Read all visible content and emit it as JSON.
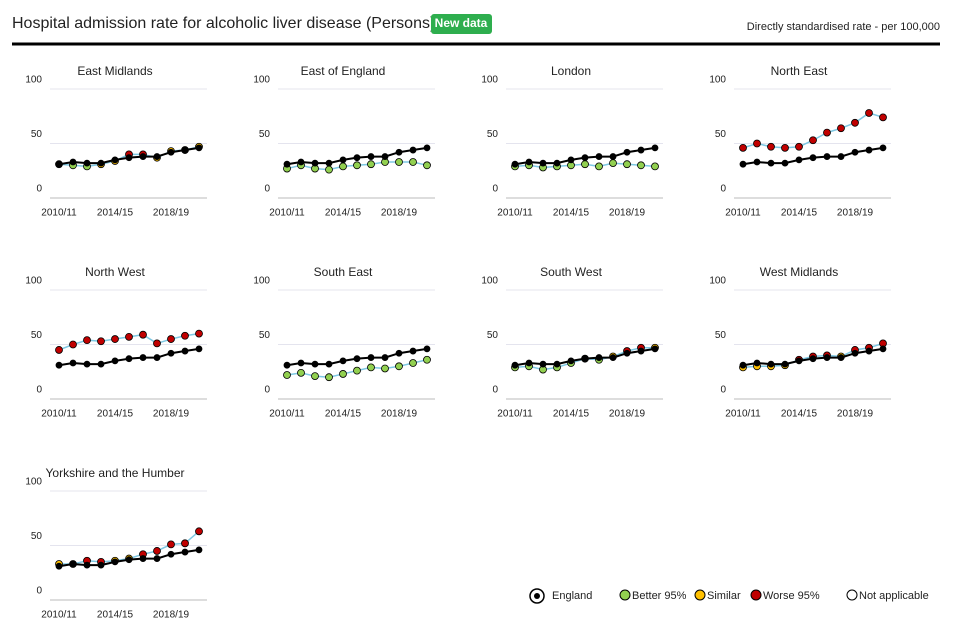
{
  "header": {
    "title": "Hospital admission rate for alcoholic liver disease (Persons)",
    "badge": "New data",
    "units": "Directly standardised rate - per 100,000"
  },
  "legend": {
    "items": [
      {
        "label": "England",
        "color": "#000000"
      },
      {
        "label": "Better 95%",
        "color": "#92d050"
      },
      {
        "label": "Similar",
        "color": "#ffc000"
      },
      {
        "label": "Worse 95%",
        "color": "#c00000"
      },
      {
        "label": "Not applicable",
        "color": "#ffffff"
      }
    ]
  },
  "chart_data": [
    {
      "type": "line",
      "title": "East Midlands",
      "categories": [
        "2010/11",
        null,
        null,
        null,
        "2014/15",
        null,
        null,
        null,
        "2018/19",
        null,
        null
      ],
      "ylim": [
        0,
        100
      ],
      "yticks": [
        0,
        50,
        100
      ],
      "grid": true,
      "series": [
        {
          "name": "England",
          "color": "#000000",
          "values": [
            31,
            33,
            32,
            32,
            35,
            37,
            38,
            38,
            42,
            44,
            46
          ]
        },
        {
          "color": "#7ec8e3",
          "values": [
            31,
            30,
            29,
            31,
            34,
            40,
            40,
            37,
            43,
            44,
            47
          ],
          "point_colors": [
            "#ffc000",
            "#92d050",
            "#92d050",
            "#ffc000",
            "#ffc000",
            "#c00000",
            "#c00000",
            "#ffc000",
            "#ffc000",
            "#ffc000",
            "#ffc000"
          ]
        }
      ]
    },
    {
      "type": "line",
      "title": "East of England",
      "categories": [
        "2010/11",
        null,
        null,
        null,
        "2014/15",
        null,
        null,
        null,
        "2018/19",
        null,
        null
      ],
      "ylim": [
        0,
        100
      ],
      "yticks": [
        0,
        50,
        100
      ],
      "grid": true,
      "series": [
        {
          "name": "England",
          "color": "#000000",
          "values": [
            31,
            33,
            32,
            32,
            35,
            37,
            38,
            38,
            42,
            44,
            46
          ]
        },
        {
          "color": "#7ec8e3",
          "values": [
            27,
            30,
            27,
            26,
            29,
            30,
            31,
            33,
            33,
            33,
            30
          ],
          "point_colors": [
            "#92d050",
            "#92d050",
            "#92d050",
            "#92d050",
            "#92d050",
            "#92d050",
            "#92d050",
            "#92d050",
            "#92d050",
            "#92d050",
            "#92d050"
          ]
        }
      ]
    },
    {
      "type": "line",
      "title": "London",
      "categories": [
        "2010/11",
        null,
        null,
        null,
        "2014/15",
        null,
        null,
        null,
        "2018/19",
        null,
        null
      ],
      "ylim": [
        0,
        100
      ],
      "yticks": [
        0,
        50,
        100
      ],
      "grid": true,
      "series": [
        {
          "name": "England",
          "color": "#000000",
          "values": [
            31,
            33,
            32,
            32,
            35,
            37,
            38,
            38,
            42,
            44,
            46
          ]
        },
        {
          "color": "#7ec8e3",
          "values": [
            29,
            30,
            28,
            29,
            30,
            31,
            29,
            32,
            31,
            30,
            29
          ],
          "point_colors": [
            "#92d050",
            "#92d050",
            "#92d050",
            "#92d050",
            "#92d050",
            "#92d050",
            "#92d050",
            "#92d050",
            "#92d050",
            "#92d050",
            "#92d050"
          ]
        }
      ]
    },
    {
      "type": "line",
      "title": "North East",
      "categories": [
        "2010/11",
        null,
        null,
        null,
        "2014/15",
        null,
        null,
        null,
        "2018/19",
        null,
        null
      ],
      "ylim": [
        0,
        100
      ],
      "yticks": [
        0,
        50,
        100
      ],
      "grid": true,
      "series": [
        {
          "name": "England",
          "color": "#000000",
          "values": [
            31,
            33,
            32,
            32,
            35,
            37,
            38,
            38,
            42,
            44,
            46
          ]
        },
        {
          "color": "#7ec8e3",
          "values": [
            46,
            50,
            47,
            46,
            47,
            53,
            60,
            64,
            69,
            78,
            74
          ],
          "point_colors": [
            "#c00000",
            "#c00000",
            "#c00000",
            "#c00000",
            "#c00000",
            "#c00000",
            "#c00000",
            "#c00000",
            "#c00000",
            "#c00000",
            "#c00000"
          ]
        }
      ]
    },
    {
      "type": "line",
      "title": "North West",
      "categories": [
        "2010/11",
        null,
        null,
        null,
        "2014/15",
        null,
        null,
        null,
        "2018/19",
        null,
        null
      ],
      "ylim": [
        0,
        100
      ],
      "yticks": [
        0,
        50,
        100
      ],
      "grid": true,
      "series": [
        {
          "name": "England",
          "color": "#000000",
          "values": [
            31,
            33,
            32,
            32,
            35,
            37,
            38,
            38,
            42,
            44,
            46
          ]
        },
        {
          "color": "#7ec8e3",
          "values": [
            45,
            50,
            54,
            53,
            55,
            57,
            59,
            51,
            55,
            58,
            60
          ],
          "point_colors": [
            "#c00000",
            "#c00000",
            "#c00000",
            "#c00000",
            "#c00000",
            "#c00000",
            "#c00000",
            "#c00000",
            "#c00000",
            "#c00000",
            "#c00000"
          ]
        }
      ]
    },
    {
      "type": "line",
      "title": "South East",
      "categories": [
        "2010/11",
        null,
        null,
        null,
        "2014/15",
        null,
        null,
        null,
        "2018/19",
        null,
        null
      ],
      "ylim": [
        0,
        100
      ],
      "yticks": [
        0,
        50,
        100
      ],
      "grid": true,
      "series": [
        {
          "name": "England",
          "color": "#000000",
          "values": [
            31,
            33,
            32,
            32,
            35,
            37,
            38,
            38,
            42,
            44,
            46
          ]
        },
        {
          "color": "#7ec8e3",
          "values": [
            22,
            24,
            21,
            20,
            23,
            26,
            29,
            28,
            30,
            33,
            36
          ],
          "point_colors": [
            "#92d050",
            "#92d050",
            "#92d050",
            "#92d050",
            "#92d050",
            "#92d050",
            "#92d050",
            "#92d050",
            "#92d050",
            "#92d050",
            "#92d050"
          ]
        }
      ]
    },
    {
      "type": "line",
      "title": "South West",
      "categories": [
        "2010/11",
        null,
        null,
        null,
        "2014/15",
        null,
        null,
        null,
        "2018/19",
        null,
        null
      ],
      "ylim": [
        0,
        100
      ],
      "yticks": [
        0,
        50,
        100
      ],
      "grid": true,
      "series": [
        {
          "name": "England",
          "color": "#000000",
          "values": [
            31,
            33,
            32,
            32,
            35,
            37,
            38,
            38,
            42,
            44,
            46
          ]
        },
        {
          "color": "#7ec8e3",
          "values": [
            29,
            30,
            27,
            29,
            33,
            37,
            36,
            39,
            44,
            47,
            47
          ],
          "point_colors": [
            "#92d050",
            "#92d050",
            "#92d050",
            "#92d050",
            "#92d050",
            "#92d050",
            "#92d050",
            "#ffc000",
            "#c00000",
            "#c00000",
            "#ffc000"
          ]
        }
      ]
    },
    {
      "type": "line",
      "title": "West Midlands",
      "categories": [
        "2010/11",
        null,
        null,
        null,
        "2014/15",
        null,
        null,
        null,
        "2018/19",
        null,
        null
      ],
      "ylim": [
        0,
        100
      ],
      "yticks": [
        0,
        50,
        100
      ],
      "grid": true,
      "series": [
        {
          "name": "England",
          "color": "#000000",
          "values": [
            31,
            33,
            32,
            32,
            35,
            37,
            38,
            38,
            42,
            44,
            46
          ]
        },
        {
          "color": "#7ec8e3",
          "values": [
            29,
            30,
            30,
            31,
            36,
            39,
            40,
            39,
            45,
            47,
            51
          ],
          "point_colors": [
            "#ffc000",
            "#ffc000",
            "#ffc000",
            "#ffc000",
            "#c00000",
            "#c00000",
            "#c00000",
            "#ffc000",
            "#c00000",
            "#c00000",
            "#c00000"
          ]
        }
      ]
    },
    {
      "type": "line",
      "title": "Yorkshire and the Humber",
      "categories": [
        "2010/11",
        null,
        null,
        null,
        "2014/15",
        null,
        null,
        null,
        "2018/19",
        null,
        null
      ],
      "ylim": [
        0,
        100
      ],
      "yticks": [
        0,
        50,
        100
      ],
      "grid": true,
      "series": [
        {
          "name": "England",
          "color": "#000000",
          "values": [
            31,
            33,
            32,
            32,
            35,
            37,
            38,
            38,
            42,
            44,
            46
          ]
        },
        {
          "color": "#7ec8e3",
          "values": [
            33,
            33,
            36,
            35,
            36,
            38,
            42,
            45,
            51,
            52,
            63
          ],
          "point_colors": [
            "#ffc000",
            "#ffc000",
            "#c00000",
            "#c00000",
            "#ffc000",
            "#ffc000",
            "#c00000",
            "#c00000",
            "#c00000",
            "#c00000",
            "#c00000"
          ]
        }
      ]
    }
  ]
}
